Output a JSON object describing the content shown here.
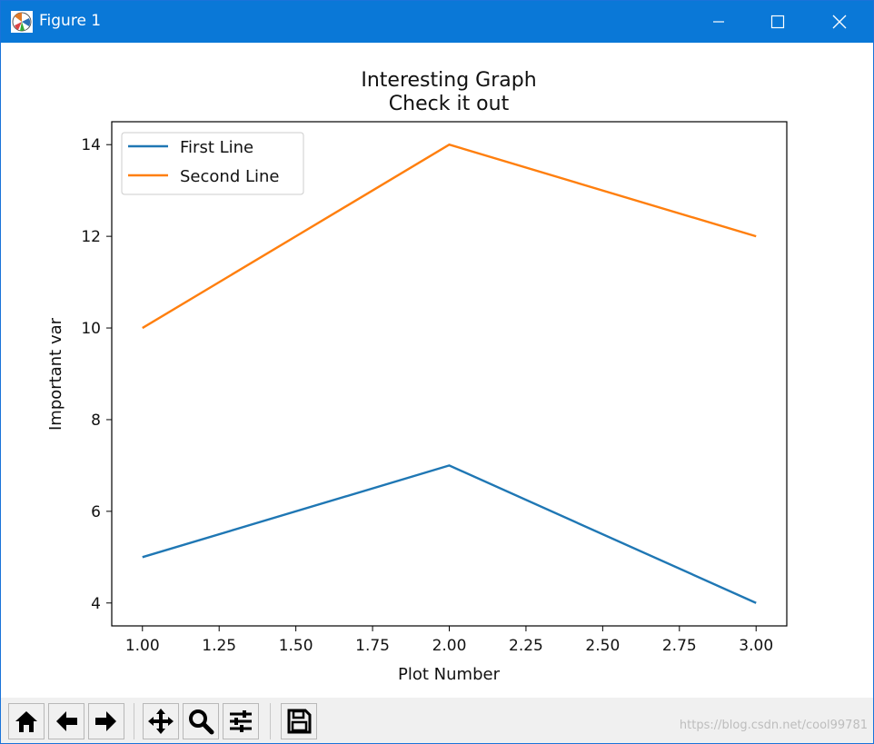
{
  "window": {
    "title": "Figure 1"
  },
  "toolbar": {
    "buttons": [
      {
        "name": "home",
        "icon": "home-icon"
      },
      {
        "name": "back",
        "icon": "arrow-left-icon"
      },
      {
        "name": "forward",
        "icon": "arrow-right-icon"
      },
      {
        "name": "pan",
        "icon": "move-icon"
      },
      {
        "name": "zoom",
        "icon": "magnifier-icon"
      },
      {
        "name": "configure-subplots",
        "icon": "sliders-icon"
      },
      {
        "name": "save",
        "icon": "floppy-disk-icon"
      }
    ]
  },
  "watermark": "https://blog.csdn.net/cool99781",
  "chart_data": {
    "type": "line",
    "title": "Interesting Graph",
    "subtitle": "Check it out",
    "xlabel": "Plot Number",
    "ylabel": "Important var",
    "x": [
      1,
      2,
      3
    ],
    "xlim": [
      0.9,
      3.1
    ],
    "ylim": [
      3.5,
      14.5
    ],
    "xticks": [
      "1.00",
      "1.25",
      "1.50",
      "1.75",
      "2.00",
      "2.25",
      "2.50",
      "2.75",
      "3.00"
    ],
    "xtick_values": [
      1.0,
      1.25,
      1.5,
      1.75,
      2.0,
      2.25,
      2.5,
      2.75,
      3.0
    ],
    "yticks": [
      "4",
      "6",
      "8",
      "10",
      "12",
      "14"
    ],
    "ytick_values": [
      4,
      6,
      8,
      10,
      12,
      14
    ],
    "grid": false,
    "legend_position": "upper-left",
    "series": [
      {
        "name": "First Line",
        "values": [
          5,
          7,
          4
        ],
        "color": "#1f77b4"
      },
      {
        "name": "Second Line",
        "values": [
          10,
          14,
          12
        ],
        "color": "#ff7f0e"
      }
    ]
  }
}
